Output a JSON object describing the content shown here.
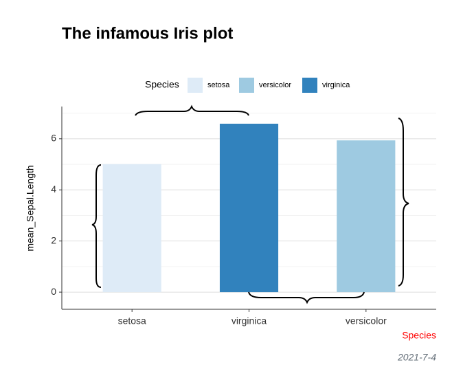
{
  "chart_data": {
    "type": "bar",
    "title": "The infamous Iris plot",
    "categories": [
      "setosa",
      "virginica",
      "versicolor"
    ],
    "values": [
      5.006,
      6.588,
      5.936
    ],
    "colors": [
      "#deebf7",
      "#3182bd",
      "#9ecae1"
    ],
    "x_label": "Species",
    "y_label": "mean_Sepal.Length",
    "caption": "2021-7-4",
    "legend": {
      "title": "Species",
      "items": [
        {
          "name": "setosa",
          "color": "#deebf7"
        },
        {
          "name": "versicolor",
          "color": "#9ecae1"
        },
        {
          "name": "virginica",
          "color": "#3182bd"
        }
      ]
    },
    "ylim": [
      -0.67,
      7.26
    ],
    "yticks": [
      0,
      2,
      4,
      6
    ],
    "y_minor_ticks": [
      1,
      3,
      5,
      7
    ],
    "grid": true
  }
}
